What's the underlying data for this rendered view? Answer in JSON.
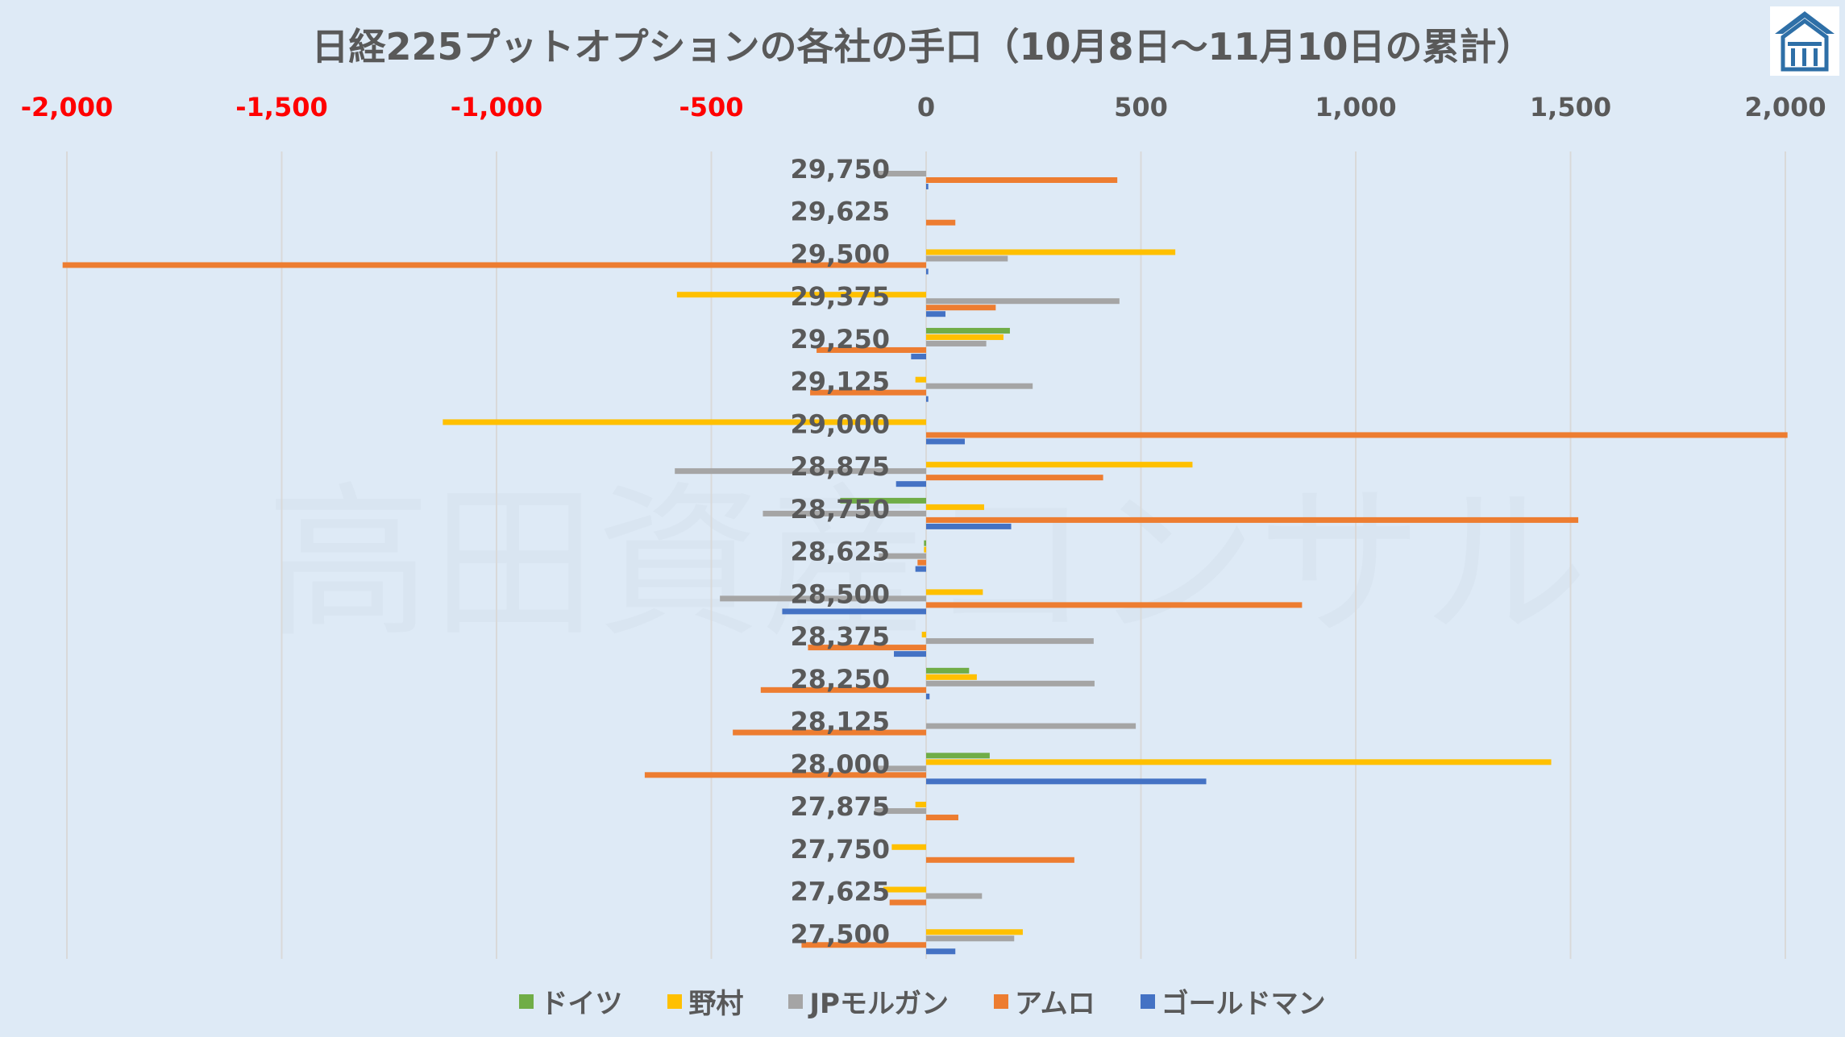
{
  "title": "日経225プットオプションの各社の手口（10月8日～11月10日の累計）",
  "watermark": "高田資産コンサル",
  "colors": {
    "negative_tick": "#ff0000",
    "positive_tick": "#595959",
    "gridline": "#d9d9d9"
  },
  "chart_data": {
    "type": "bar",
    "orientation": "horizontal",
    "categories": [
      "29,750",
      "29,625",
      "29,500",
      "29,375",
      "29,250",
      "29,125",
      "29,000",
      "28,875",
      "28,750",
      "28,625",
      "28,500",
      "28,375",
      "28,250",
      "28,125",
      "28,000",
      "27,875",
      "27,750",
      "27,625",
      "27,500"
    ],
    "series": [
      {
        "name": "ドイツ",
        "color": "#70ad47",
        "values": [
          0,
          0,
          0,
          0,
          195,
          0,
          0,
          0,
          -200,
          -5,
          0,
          0,
          100,
          0,
          148,
          0,
          0,
          0,
          0
        ]
      },
      {
        "name": "野村",
        "color": "#ffc000",
        "values": [
          0,
          0,
          580,
          -580,
          180,
          -25,
          -1125,
          620,
          135,
          -5,
          132,
          -10,
          118,
          0,
          1455,
          -25,
          -80,
          -100,
          225
        ]
      },
      {
        "name": "JPモルガン",
        "color": "#a5a5a5",
        "values": [
          -120,
          0,
          190,
          450,
          140,
          248,
          0,
          -585,
          -380,
          -110,
          -480,
          390,
          392,
          488,
          -120,
          -120,
          0,
          130,
          205
        ]
      },
      {
        "name": "アムロ",
        "color": "#ed7d31",
        "values": [
          445,
          68,
          -2010,
          162,
          -255,
          -270,
          2005,
          412,
          1518,
          -20,
          875,
          -275,
          -385,
          -450,
          -655,
          75,
          345,
          -85,
          -290
        ]
      },
      {
        "name": "ゴールドマン",
        "color": "#4472c4",
        "values": [
          5,
          0,
          5,
          45,
          -35,
          5,
          90,
          -70,
          198,
          -25,
          -335,
          -75,
          8,
          0,
          652,
          0,
          0,
          0,
          68
        ]
      }
    ],
    "xlim": [
      -2000,
      2000
    ],
    "xticks": [
      -2000,
      -1500,
      -1000,
      -500,
      0,
      500,
      1000,
      1500,
      2000
    ],
    "xtick_labels": [
      "-2,000",
      "-1,500",
      "-1,000",
      "-500",
      "0",
      "500",
      "1,000",
      "1,500",
      "2,000"
    ],
    "xaxis_position": "top",
    "grid": true,
    "legend_position": "bottom"
  }
}
